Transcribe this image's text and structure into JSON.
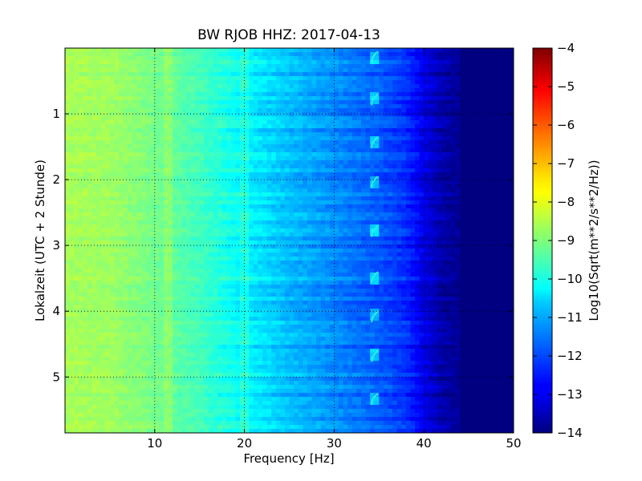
{
  "chart_data": {
    "type": "heatmap",
    "title": "BW RJOB HHZ: 2017-04-13",
    "xlabel": "Frequency [Hz]",
    "ylabel": "Lokalzeit (UTC + 2 Stunde)",
    "xlim": [
      0,
      50
    ],
    "ylim": [
      5.85,
      0
    ],
    "x_ticks": [
      10,
      20,
      30,
      40,
      50
    ],
    "y_ticks": [
      1,
      2,
      3,
      4,
      5
    ],
    "grid": true,
    "colormap": "jet",
    "colorbar": {
      "label": "Log10(Sqrt(m**2/s**2/Hz))",
      "range": [
        -14,
        -4
      ],
      "ticks": [
        -4,
        -5,
        -6,
        -7,
        -8,
        -9,
        -10,
        -11,
        -12,
        -13,
        -14
      ]
    },
    "spectral_profile": {
      "frequency_hz": [
        0,
        5,
        10,
        15,
        20,
        25,
        30,
        35,
        38,
        40,
        42,
        45,
        50
      ],
      "log10_level": [
        -8.6,
        -8.7,
        -9.1,
        -9.6,
        -10.3,
        -10.9,
        -11.4,
        -11.9,
        -12.3,
        -13.0,
        -13.6,
        -13.9,
        -14.0
      ]
    },
    "features": {
      "tonal_lines_hz": [
        11.5,
        20.0
      ],
      "hourly_chirp_frequency_hz": 34.5,
      "hourly_chirp_times_h": [
        0.1,
        0.75,
        1.4,
        2.0,
        2.75,
        3.45,
        4.05,
        4.65,
        5.3
      ]
    }
  }
}
